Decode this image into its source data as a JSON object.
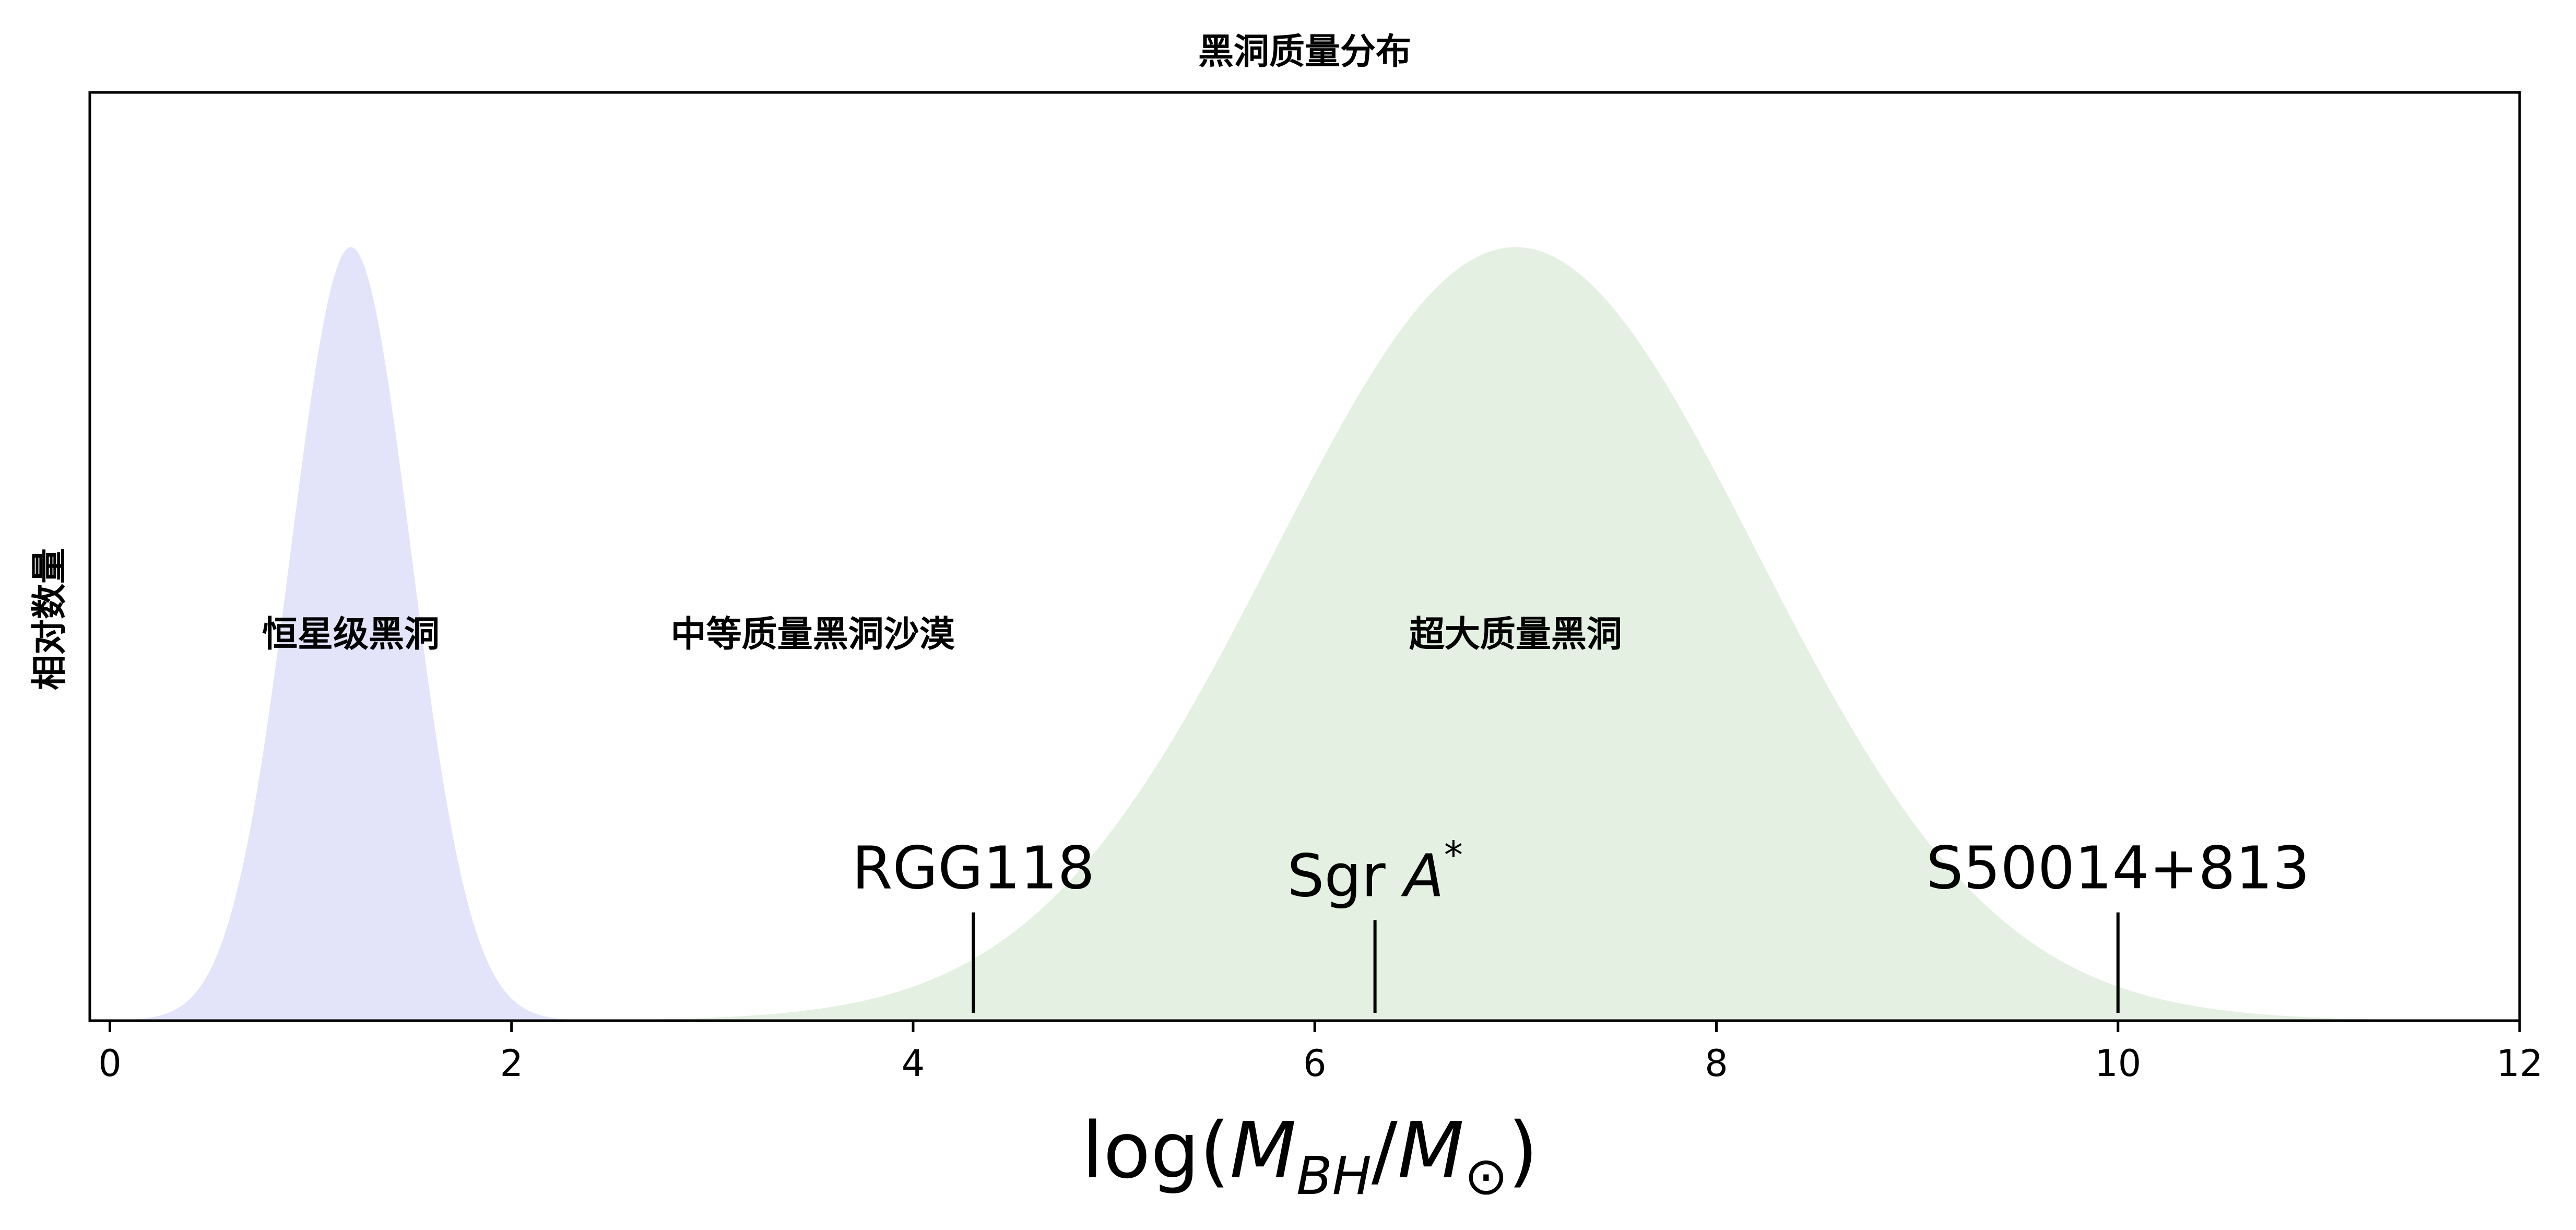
{
  "chart_data": {
    "type": "area",
    "title": "黑洞质量分布",
    "xlabel_prefix": "log(",
    "xlabel_M1": "M",
    "xlabel_sub1": "BH",
    "xlabel_slash": "/",
    "xlabel_M2": "M",
    "xlabel_sub2": "⊙",
    "xlabel_suffix": ")",
    "ylabel": "相对数量",
    "xlim": [
      -0.1,
      12
    ],
    "ylim": [
      0,
      1.2
    ],
    "xticks": [
      0,
      2,
      4,
      6,
      8,
      10,
      12
    ],
    "series": [
      {
        "mean": 1.2,
        "sigma": 0.3,
        "peak": 1.0,
        "color": "#e3e3fa"
      },
      {
        "mean": 7.0,
        "sigma": 1.2,
        "peak": 1.0,
        "color": "#e4f0e2"
      }
    ],
    "regions": [
      {
        "label": "恒星级黑洞",
        "x": 1.2,
        "y": 0.5
      },
      {
        "label": "中等质量黑洞沙漠",
        "x": 3.5,
        "y": 0.5
      },
      {
        "label": "超大质量黑洞",
        "x": 7.0,
        "y": 0.5
      }
    ],
    "markers": [
      {
        "label": "RGG118",
        "label_italic": "",
        "label_sup": "",
        "x": 4.3,
        "y_bottom": 0.01,
        "y_top": 0.14
      },
      {
        "label": "Sgr ",
        "label_italic": "A",
        "label_sup": "*",
        "x": 6.3,
        "y_bottom": 0.01,
        "y_top": 0.13
      },
      {
        "label": "S50014+813",
        "label_italic": "",
        "label_sup": "",
        "x": 10.0,
        "y_bottom": 0.01,
        "y_top": 0.14
      }
    ]
  }
}
